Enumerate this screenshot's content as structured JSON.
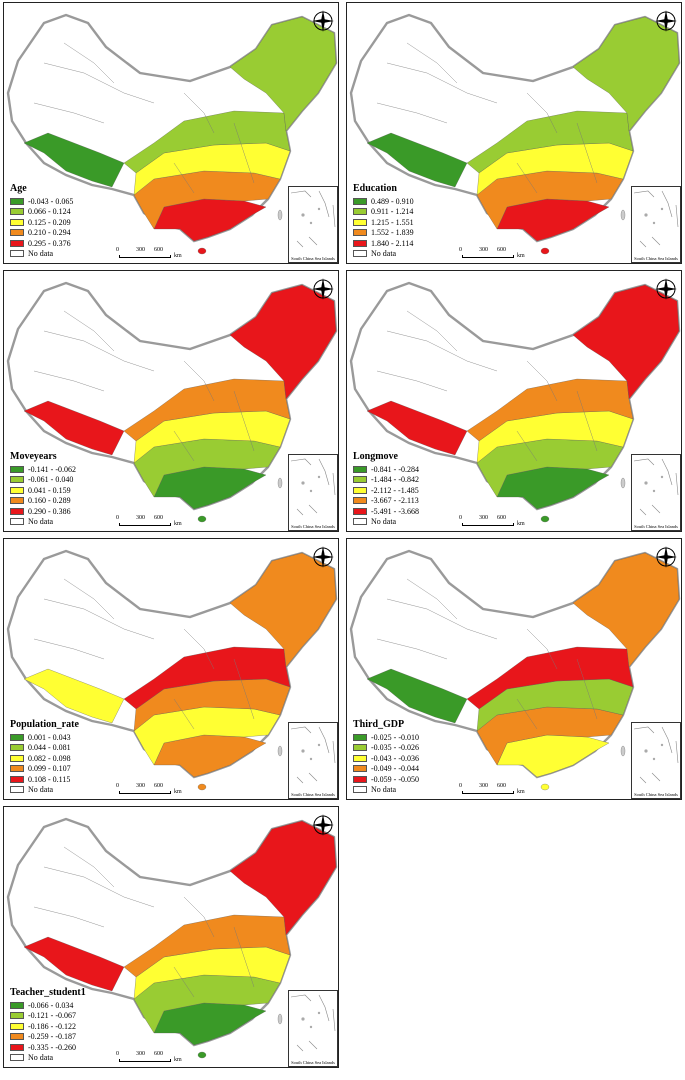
{
  "common": {
    "no_data_label": "No data",
    "scale_labels": [
      "0",
      "300",
      "600"
    ],
    "scale_unit": "km",
    "inset_label": "South China Sea Islands",
    "north_label": "N"
  },
  "colors": [
    "#3a9a28",
    "#99cc33",
    "#ffff33",
    "#f08a1e",
    "#e8161b"
  ],
  "panels": [
    {
      "title": "Age",
      "classes": [
        "-0.043 - 0.065",
        "0.066 - 0.124",
        "0.125 - 0.209",
        "0.210 - 0.294",
        "0.295 - 0.376"
      ],
      "map_color_order": [
        4,
        3,
        2,
        1,
        0,
        1
      ]
    },
    {
      "title": "Education",
      "classes": [
        "0.489 - 0.910",
        "0.911 - 1.214",
        "1.215 - 1.551",
        "1.552 - 1.839",
        "1.840 - 2.114"
      ],
      "map_color_order": [
        4,
        3,
        2,
        1,
        0,
        1
      ]
    },
    {
      "title": "Moveyears",
      "classes": [
        "-0.141 - -0.062",
        "-0.061 - 0.040",
        "0.041 - 0.159",
        "0.160 - 0.289",
        "0.290 - 0.386"
      ],
      "map_color_order": [
        0,
        1,
        2,
        3,
        4,
        4
      ]
    },
    {
      "title": "Longmove",
      "classes": [
        "-0.841 - -0.284",
        "-1.484 - -0.842",
        "-2.112 - -1.485",
        "-3.667 - -2.113",
        "-5.491 - -3.668"
      ],
      "map_color_order": [
        0,
        1,
        2,
        3,
        4,
        4
      ]
    },
    {
      "title": "Population_rate",
      "classes": [
        "0.001 - 0.043",
        "0.044 - 0.081",
        "0.082 - 0.098",
        "0.099 - 0.107",
        "0.108 - 0.115"
      ],
      "map_color_order": [
        3,
        2,
        3,
        4,
        2,
        3
      ]
    },
    {
      "title": "Third_GDP",
      "classes": [
        "-0.025 - -0.010",
        "-0.035 - -0.026",
        "-0.043 - -0.036",
        "-0.049 - -0.044",
        "-0.059 - -0.050"
      ],
      "map_color_order": [
        2,
        3,
        1,
        4,
        0,
        3
      ]
    },
    {
      "title": "Teacher_student1",
      "classes": [
        "-0.066 - 0.034",
        "-0.121 - -0.067",
        "-0.186 - -0.122",
        "-0.259 - -0.187",
        "-0.335 - -0.260"
      ],
      "map_color_order": [
        0,
        1,
        2,
        3,
        4,
        4
      ]
    }
  ]
}
